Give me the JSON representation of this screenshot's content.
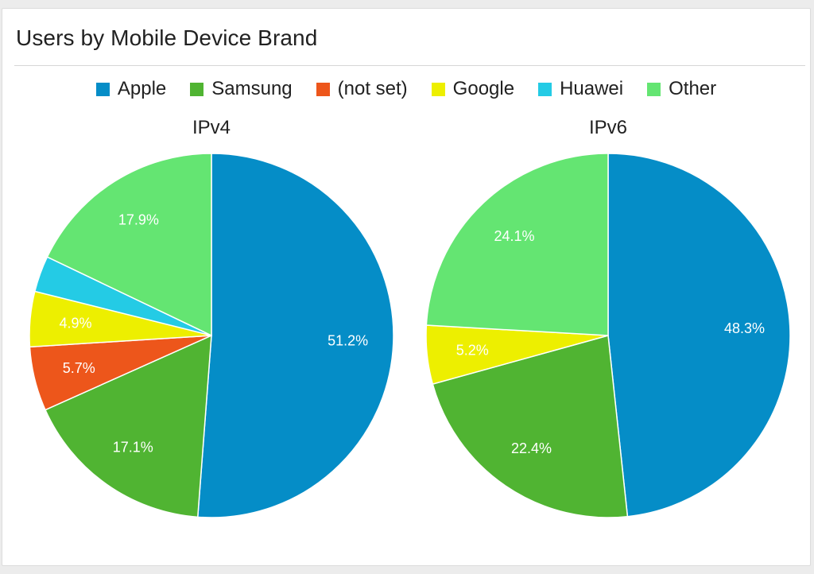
{
  "card_title": "Users by Mobile Device Brand",
  "legend": [
    {
      "label": "Apple",
      "color": "#058dc7"
    },
    {
      "label": "Samsung",
      "color": "#50b432"
    },
    {
      "label": "(not set)",
      "color": "#ed561b"
    },
    {
      "label": "Google",
      "color": "#edef00"
    },
    {
      "label": "Huawei",
      "color": "#24cbe5"
    },
    {
      "label": "Other",
      "color": "#64e572"
    }
  ],
  "chart_data": [
    {
      "type": "pie",
      "title": "IPv4",
      "slices": [
        {
          "label": "Apple",
          "value": 51.2,
          "color": "#058dc7",
          "display": "51.2%"
        },
        {
          "label": "Samsung",
          "value": 17.1,
          "color": "#50b432",
          "display": "17.1%"
        },
        {
          "label": "(not set)",
          "value": 5.7,
          "color": "#ed561b",
          "display": "5.7%"
        },
        {
          "label": "Google",
          "value": 4.9,
          "color": "#edef00",
          "display": "4.9%"
        },
        {
          "label": "Huawei",
          "value": 3.2,
          "color": "#24cbe5",
          "display": ""
        },
        {
          "label": "Other",
          "value": 17.9,
          "color": "#64e572",
          "display": "17.9%"
        }
      ]
    },
    {
      "type": "pie",
      "title": "IPv6",
      "slices": [
        {
          "label": "Apple",
          "value": 48.3,
          "color": "#058dc7",
          "display": "48.3%"
        },
        {
          "label": "Samsung",
          "value": 22.4,
          "color": "#50b432",
          "display": "22.4%"
        },
        {
          "label": "Google",
          "value": 5.2,
          "color": "#edef00",
          "display": "5.2%"
        },
        {
          "label": "Other",
          "value": 24.1,
          "color": "#64e572",
          "display": "24.1%"
        }
      ]
    }
  ]
}
